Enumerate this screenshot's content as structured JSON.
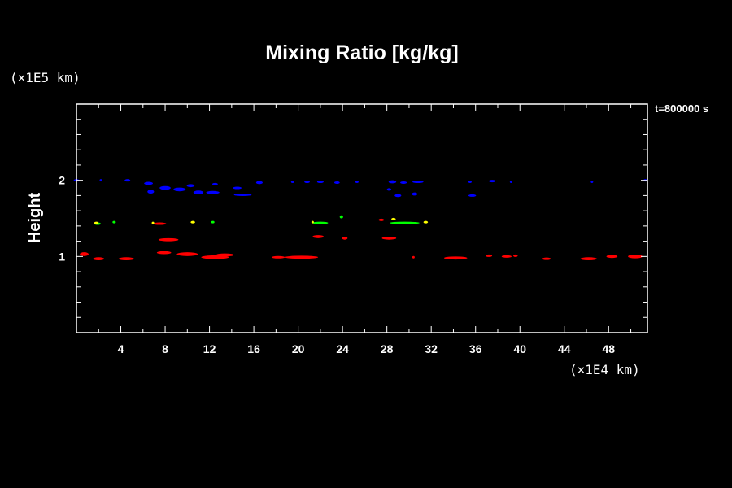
{
  "chart_data": {
    "type": "heatmap",
    "title": "Mixing Ratio [kg/kg]",
    "ylabel": "Height",
    "xlabel": "",
    "x_unit": "(×1E4 km)",
    "y_unit": "(×1E5 km)",
    "time_label": "t=800000 s",
    "xlim": [
      0,
      51.5
    ],
    "ylim": [
      0,
      3
    ],
    "x_ticks": [
      "4",
      "8",
      "12",
      "16",
      "20",
      "24",
      "28",
      "32",
      "36",
      "40",
      "44",
      "48"
    ],
    "y_ticks": [
      "1",
      "2"
    ],
    "series": [
      {
        "color": "#0000ff",
        "blobs": [
          [
            0,
            2.0,
            0.5,
            0.012
          ],
          [
            2.2,
            2.0,
            0.2,
            0.02
          ],
          [
            4.6,
            2.0,
            0.5,
            0.03
          ],
          [
            6.5,
            1.96,
            0.8,
            0.04
          ],
          [
            6.7,
            1.85,
            0.6,
            0.05
          ],
          [
            8.0,
            1.9,
            1.0,
            0.05
          ],
          [
            9.3,
            1.88,
            1.1,
            0.05
          ],
          [
            10.3,
            1.93,
            0.7,
            0.04
          ],
          [
            11.0,
            1.84,
            0.9,
            0.05
          ],
          [
            12.3,
            1.84,
            1.2,
            0.04
          ],
          [
            12.5,
            1.95,
            0.5,
            0.03
          ],
          [
            14.5,
            1.9,
            0.8,
            0.03
          ],
          [
            15.0,
            1.81,
            1.6,
            0.03
          ],
          [
            16.5,
            1.97,
            0.6,
            0.04
          ],
          [
            19.5,
            1.98,
            0.3,
            0.02
          ],
          [
            20.8,
            1.98,
            0.5,
            0.02
          ],
          [
            22.0,
            1.98,
            0.6,
            0.03
          ],
          [
            23.5,
            1.97,
            0.5,
            0.03
          ],
          [
            25.3,
            1.98,
            0.3,
            0.02
          ],
          [
            28.5,
            1.98,
            0.7,
            0.04
          ],
          [
            29.5,
            1.97,
            0.6,
            0.03
          ],
          [
            30.8,
            1.98,
            1.0,
            0.03
          ],
          [
            28.2,
            1.88,
            0.4,
            0.03
          ],
          [
            29.0,
            1.8,
            0.6,
            0.04
          ],
          [
            30.5,
            1.82,
            0.5,
            0.04
          ],
          [
            35.5,
            1.98,
            0.3,
            0.02
          ],
          [
            37.5,
            1.99,
            0.6,
            0.03
          ],
          [
            39.2,
            1.98,
            0.2,
            0.02
          ],
          [
            35.7,
            1.8,
            0.7,
            0.02
          ],
          [
            46.5,
            1.98,
            0.2,
            0.02
          ],
          [
            51.3,
            2.0,
            0.3,
            0.01
          ]
        ]
      },
      {
        "color": "#ff0000",
        "blobs": [
          [
            0.7,
            1.03,
            0.8,
            0.05
          ],
          [
            2.0,
            0.97,
            1.0,
            0.04
          ],
          [
            4.5,
            0.97,
            1.4,
            0.04
          ],
          [
            7.9,
            1.05,
            1.3,
            0.04
          ],
          [
            10.0,
            1.03,
            1.9,
            0.05
          ],
          [
            12.5,
            0.99,
            2.5,
            0.05
          ],
          [
            13.4,
            1.02,
            1.6,
            0.04
          ],
          [
            8.3,
            1.22,
            1.8,
            0.04
          ],
          [
            7.5,
            1.43,
            1.2,
            0.03
          ],
          [
            20.3,
            0.99,
            3.0,
            0.04
          ],
          [
            18.2,
            0.99,
            1.2,
            0.03
          ],
          [
            21.8,
            1.26,
            1.0,
            0.04
          ],
          [
            24.2,
            1.24,
            0.5,
            0.04
          ],
          [
            28.2,
            1.24,
            1.3,
            0.04
          ],
          [
            27.5,
            1.48,
            0.5,
            0.02
          ],
          [
            30.4,
            0.99,
            0.2,
            0.02
          ],
          [
            34.2,
            0.98,
            2.1,
            0.04
          ],
          [
            37.2,
            1.01,
            0.6,
            0.03
          ],
          [
            38.8,
            1.0,
            0.9,
            0.03
          ],
          [
            39.6,
            1.01,
            0.4,
            0.03
          ],
          [
            42.4,
            0.97,
            0.8,
            0.03
          ],
          [
            46.2,
            0.97,
            1.5,
            0.04
          ],
          [
            48.3,
            1.0,
            1.0,
            0.04
          ],
          [
            50.4,
            1.0,
            1.3,
            0.05
          ]
        ]
      },
      {
        "color": "#00ff00",
        "blobs": [
          [
            1.9,
            1.43,
            0.6,
            0.03
          ],
          [
            3.4,
            1.45,
            0.3,
            0.02
          ],
          [
            12.3,
            1.45,
            0.3,
            0.02
          ],
          [
            22.0,
            1.44,
            1.4,
            0.03
          ],
          [
            23.9,
            1.52,
            0.3,
            0.04
          ],
          [
            29.6,
            1.44,
            2.7,
            0.03
          ]
        ]
      },
      {
        "color": "#ffff00",
        "blobs": [
          [
            1.8,
            1.44,
            0.4,
            0.02
          ],
          [
            10.5,
            1.45,
            0.4,
            0.025
          ],
          [
            28.6,
            1.49,
            0.4,
            0.02
          ],
          [
            31.5,
            1.45,
            0.4,
            0.03
          ],
          [
            21.3,
            1.45,
            0.2,
            0.02
          ],
          [
            6.9,
            1.44,
            0.1,
            0.015
          ]
        ]
      }
    ]
  }
}
